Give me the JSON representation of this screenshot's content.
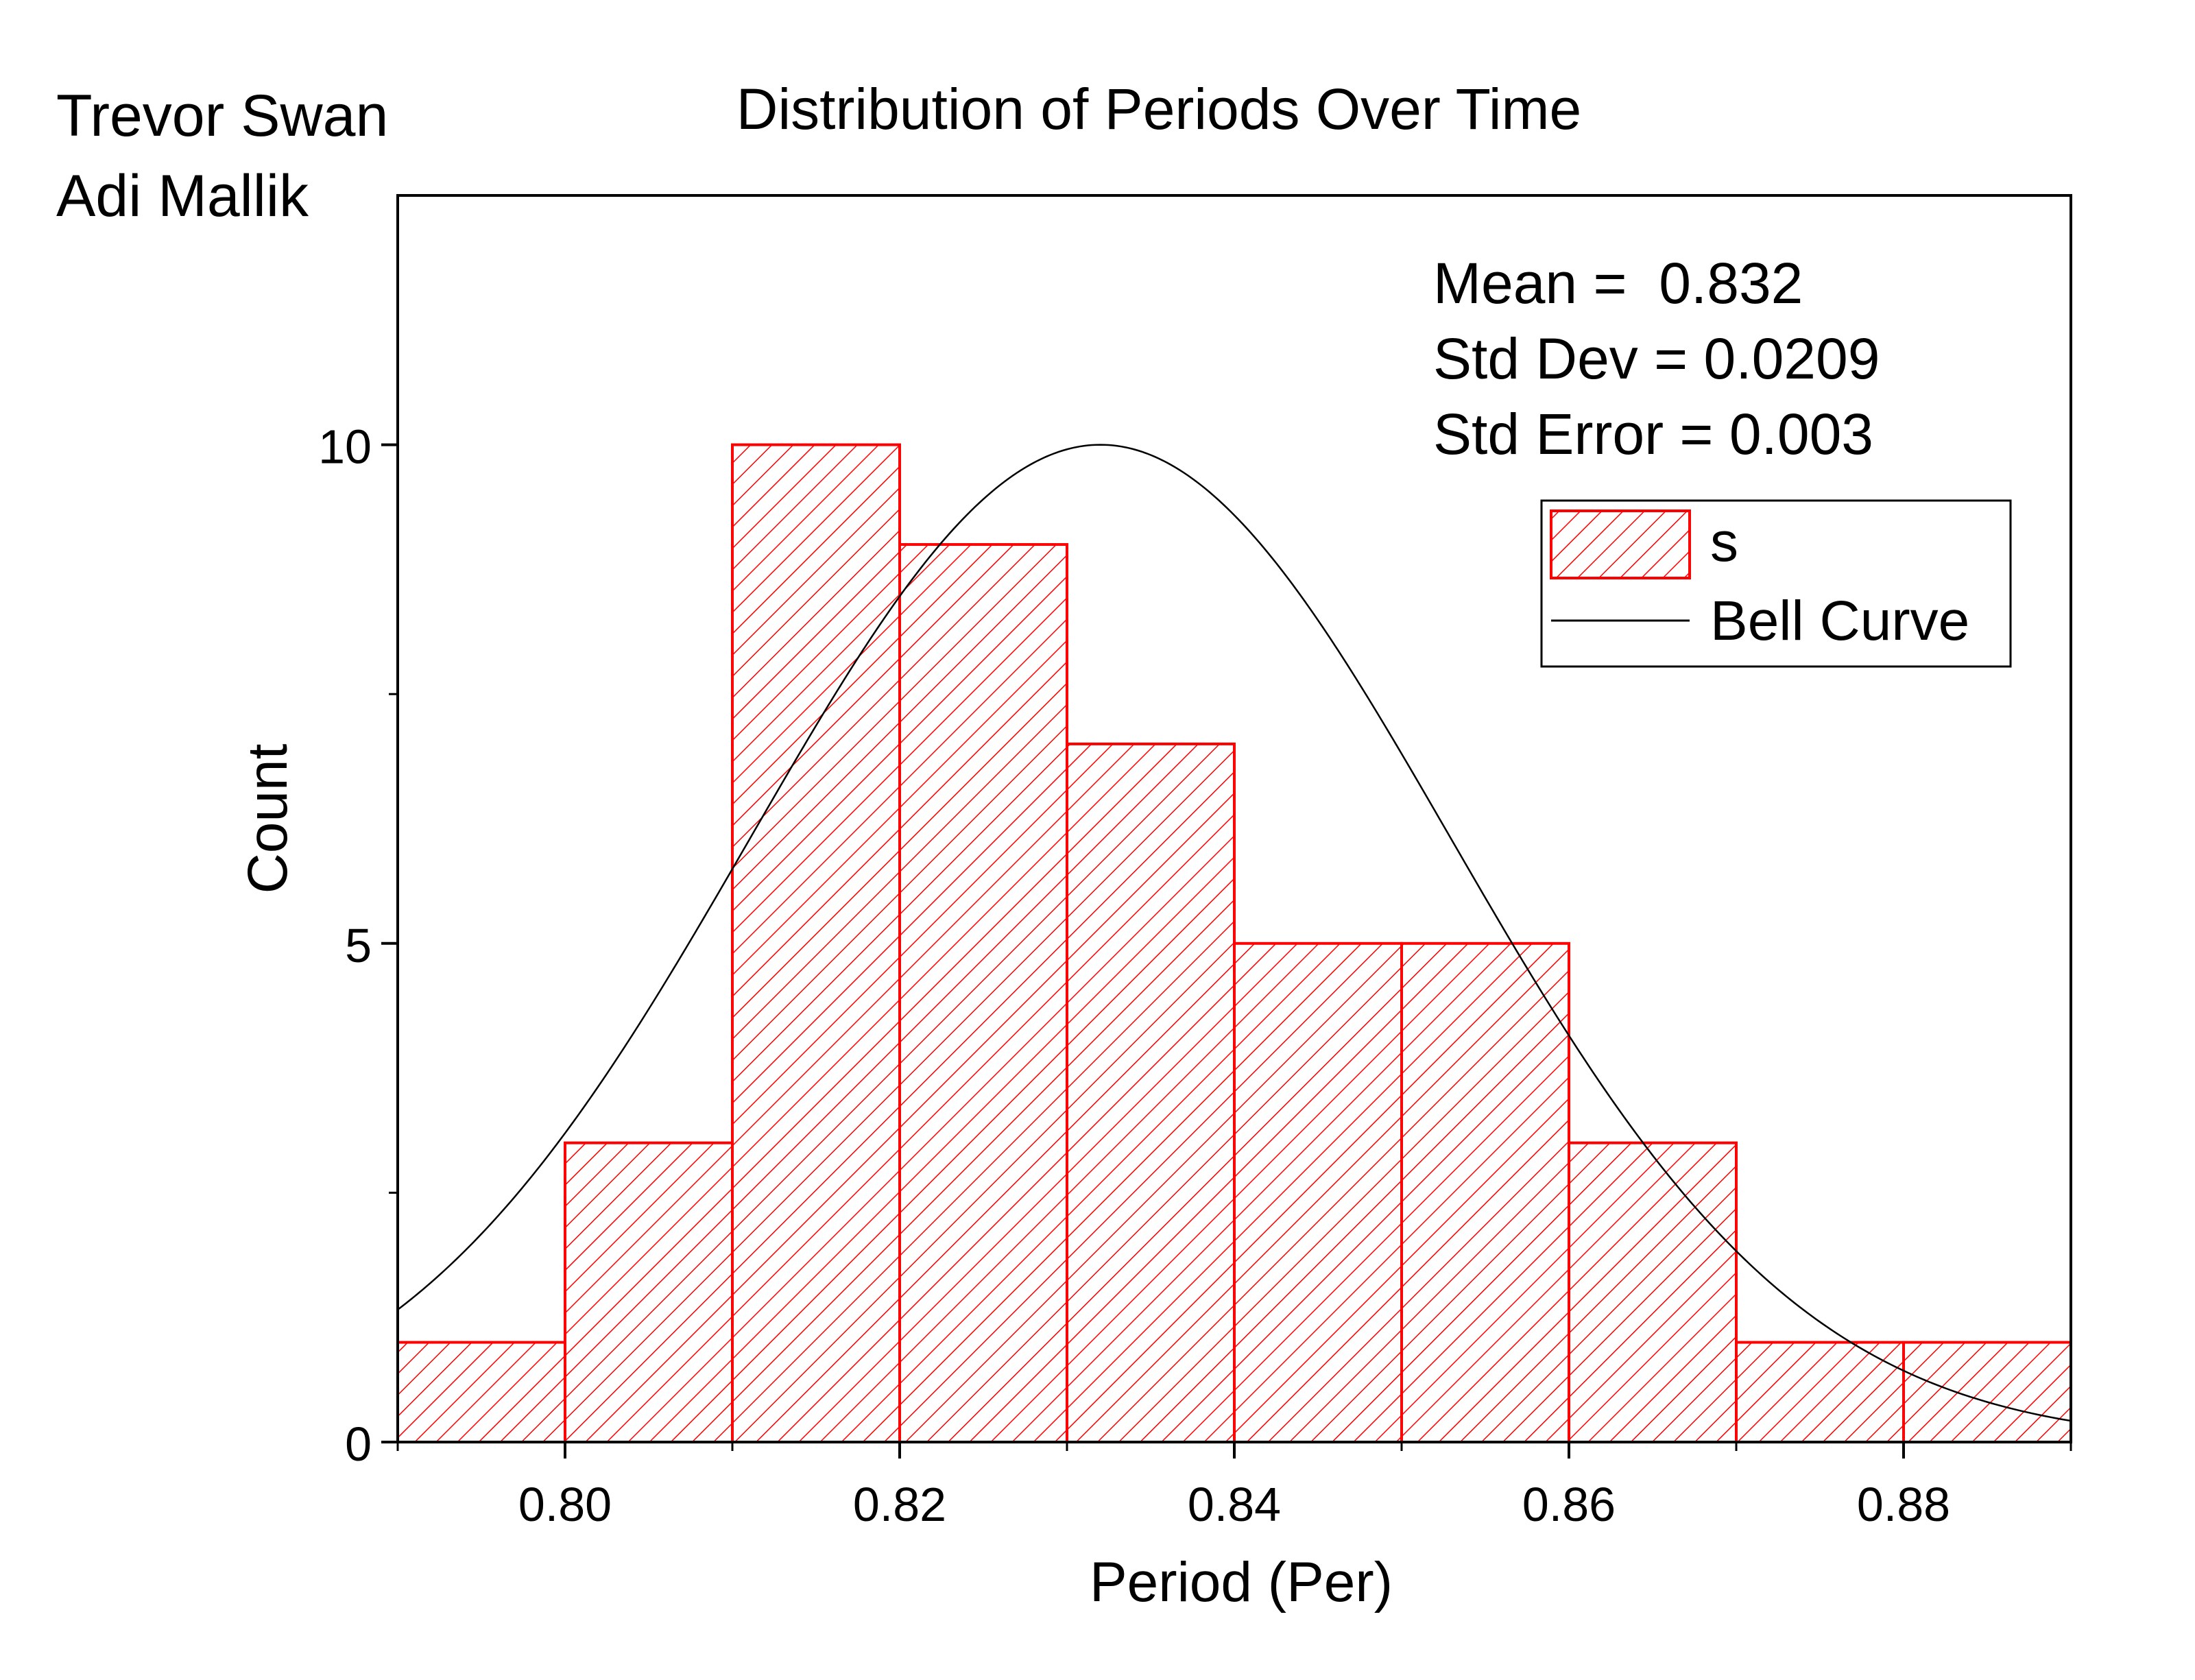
{
  "authors": [
    "Trevor Swan",
    "Adi Mallik"
  ],
  "chart_data": {
    "type": "bar",
    "title": "Distribution of Periods Over Time",
    "xlabel": "Period (Per)",
    "ylabel": "Count",
    "xlim": [
      0.79,
      0.89
    ],
    "ylim": [
      0,
      12.5
    ],
    "x_ticks": [
      "0.80",
      "0.82",
      "0.84",
      "0.86",
      "0.88"
    ],
    "y_ticks": [
      "0",
      "5",
      "10"
    ],
    "bins": [
      {
        "start": 0.79,
        "end": 0.8,
        "count": 1
      },
      {
        "start": 0.8,
        "end": 0.81,
        "count": 3
      },
      {
        "start": 0.81,
        "end": 0.82,
        "count": 10
      },
      {
        "start": 0.82,
        "end": 0.83,
        "count": 9
      },
      {
        "start": 0.83,
        "end": 0.84,
        "count": 7
      },
      {
        "start": 0.84,
        "end": 0.85,
        "count": 5
      },
      {
        "start": 0.85,
        "end": 0.86,
        "count": 5
      },
      {
        "start": 0.86,
        "end": 0.87,
        "count": 3
      },
      {
        "start": 0.87,
        "end": 0.88,
        "count": 1
      },
      {
        "start": 0.88,
        "end": 0.89,
        "count": 1
      }
    ],
    "bell_curve": {
      "mean": 0.832,
      "std_dev": 0.0209,
      "peak": 10
    },
    "stats": [
      "Mean =  0.832",
      "Std Dev = 0.0209",
      "Std Error = 0.003"
    ],
    "legend": {
      "position": "top-right",
      "entries": [
        "s",
        "Bell Curve"
      ]
    },
    "colors": {
      "bar": "#ff0000",
      "curve": "#000000",
      "axis": "#000000"
    },
    "grid": false
  }
}
